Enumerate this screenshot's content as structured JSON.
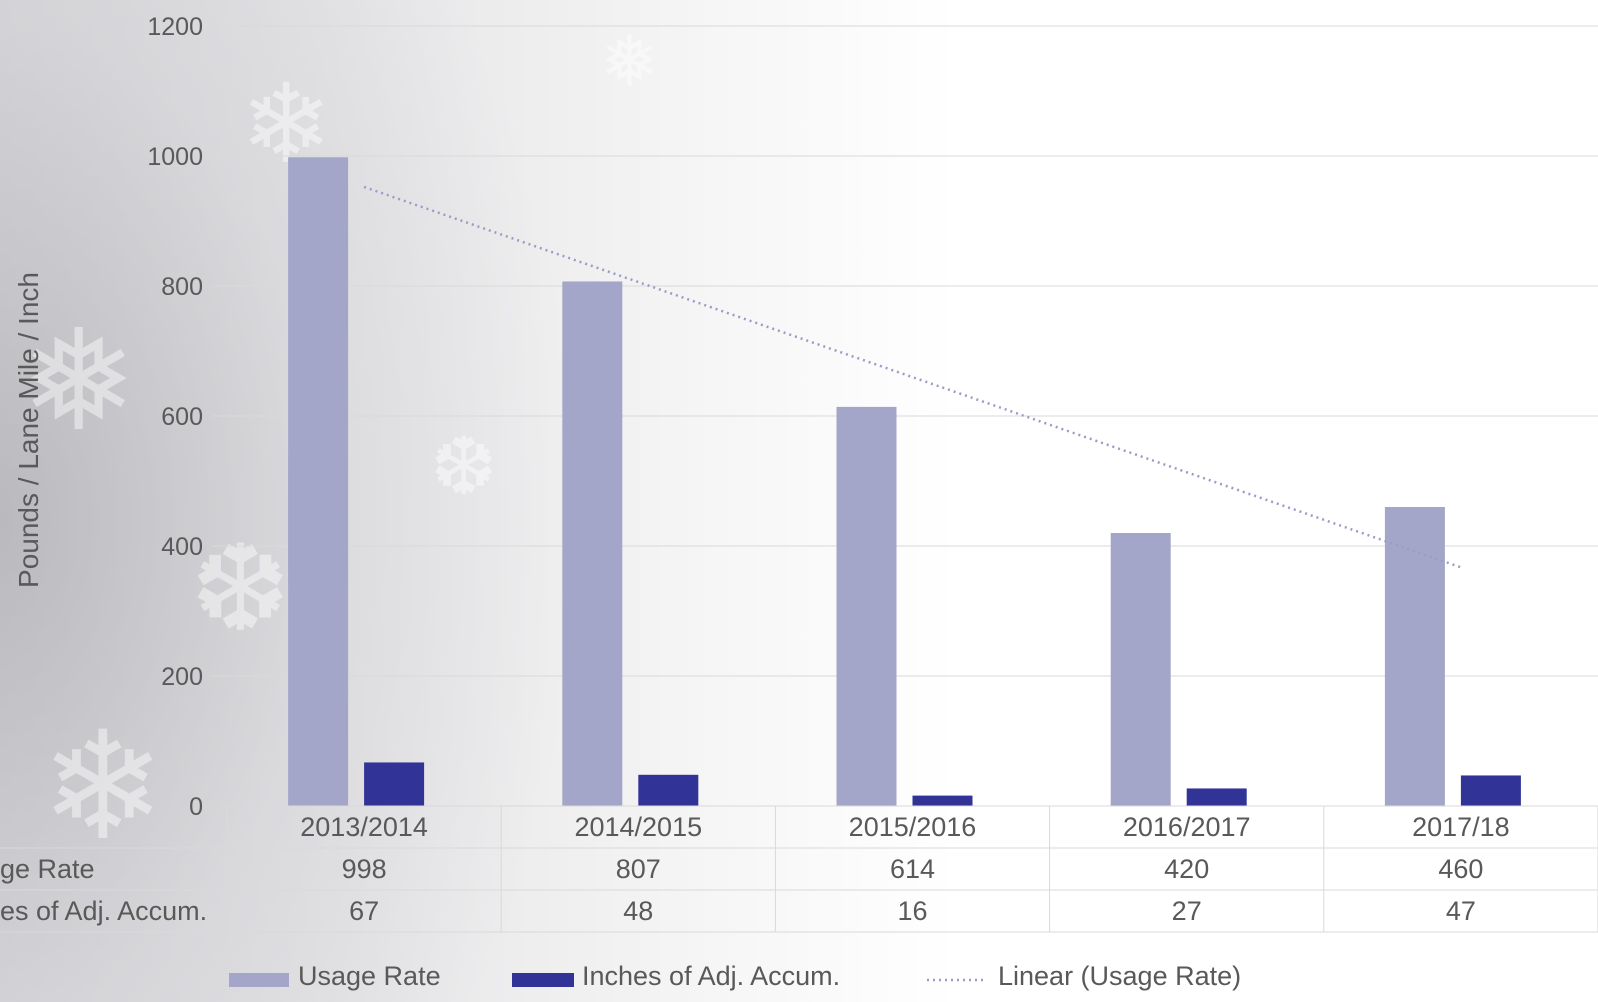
{
  "chart_data": {
    "type": "bar",
    "ylabel": "Pounds / Lane Mile / Inch",
    "ylim": [
      0,
      1200
    ],
    "yticks": [
      0,
      200,
      400,
      600,
      800,
      1000,
      1200
    ],
    "categories": [
      "2013/2014",
      "2014/2015",
      "2015/2016",
      "2016/2017",
      "2017/18"
    ],
    "series": [
      {
        "name": "Usage Rate",
        "values": [
          998,
          807,
          614,
          420,
          460
        ],
        "row_label": "ge Rate",
        "color": "#a3a6c8"
      },
      {
        "name": "Inches of Adj. Accum.",
        "values": [
          67,
          48,
          16,
          27,
          47
        ],
        "row_label": "es of Adj. Accum.",
        "color": "#313396"
      }
    ],
    "trendline": {
      "name": "Linear (Usage Rate)",
      "type": "linear",
      "of": "Usage Rate",
      "color": "#a3a6c8"
    },
    "grid": true,
    "data_table": true,
    "legend_position": "bottom"
  }
}
